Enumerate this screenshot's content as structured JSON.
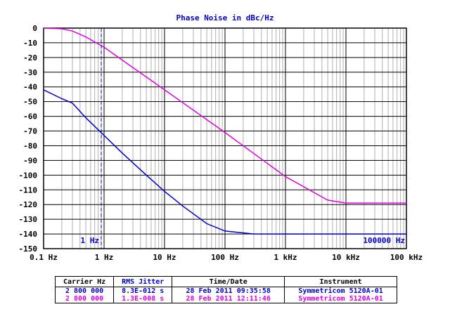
{
  "chart_data": {
    "type": "line",
    "title": "Phase Noise in dBc/Hz",
    "xscale": "log",
    "xlim": [
      0.1,
      100000
    ],
    "ylim": [
      -150,
      0
    ],
    "grid": true,
    "x_tick_labels": [
      "0.1 Hz",
      "1 Hz",
      "10 Hz",
      "100 Hz",
      "1 kHz",
      "10 kHz",
      "100 kHz"
    ],
    "y_tick_labels": [
      "0",
      "-10",
      "-20",
      "-30",
      "-40",
      "-50",
      "-60",
      "-70",
      "-80",
      "-90",
      "-100",
      "-110",
      "-120",
      "-130",
      "-140",
      "-150"
    ],
    "marker_left_label": "1 Hz",
    "marker_right_label": "100000 Hz",
    "series": [
      {
        "color": "#0000cc",
        "points": [
          [
            0.1,
            -42
          ],
          [
            0.2,
            -48
          ],
          [
            0.3,
            -51
          ],
          [
            0.5,
            -61
          ],
          [
            1,
            -73
          ],
          [
            2,
            -85
          ],
          [
            5,
            -100
          ],
          [
            10,
            -111
          ],
          [
            20,
            -121
          ],
          [
            50,
            -133
          ],
          [
            100,
            -138
          ],
          [
            300,
            -140
          ],
          [
            1000,
            -140
          ],
          [
            10000,
            -140
          ],
          [
            100000,
            -140
          ]
        ]
      },
      {
        "color": "#e000e0",
        "points": [
          [
            0.1,
            0
          ],
          [
            0.2,
            -0.5
          ],
          [
            0.3,
            -2
          ],
          [
            0.5,
            -6
          ],
          [
            1,
            -13
          ],
          [
            10,
            -42
          ],
          [
            100,
            -71
          ],
          [
            1000,
            -101
          ],
          [
            5000,
            -117
          ],
          [
            10000,
            -119
          ],
          [
            100000,
            -119
          ]
        ]
      }
    ],
    "annotations": [
      "1 Hz",
      "100000 Hz"
    ]
  },
  "legend_table": {
    "headers": [
      "Carrier Hz",
      "RMS Jitter",
      "Time/Date",
      "Instrument"
    ],
    "header_colors": [
      "#000000",
      "#0000cc",
      "#000000",
      "#000000"
    ],
    "rows": [
      {
        "color": "#0000cc",
        "cells": [
          "2 800 000",
          "8.3E-012 s",
          "28 Feb 2011 09:35:58",
          "Symmetricom 5120A-01"
        ]
      },
      {
        "color": "#e000e0",
        "cells": [
          "2 800 000",
          "1.3E-008 s",
          "28 Feb 2011 12:11:46",
          "Symmetricom 5120A-01"
        ]
      }
    ]
  }
}
